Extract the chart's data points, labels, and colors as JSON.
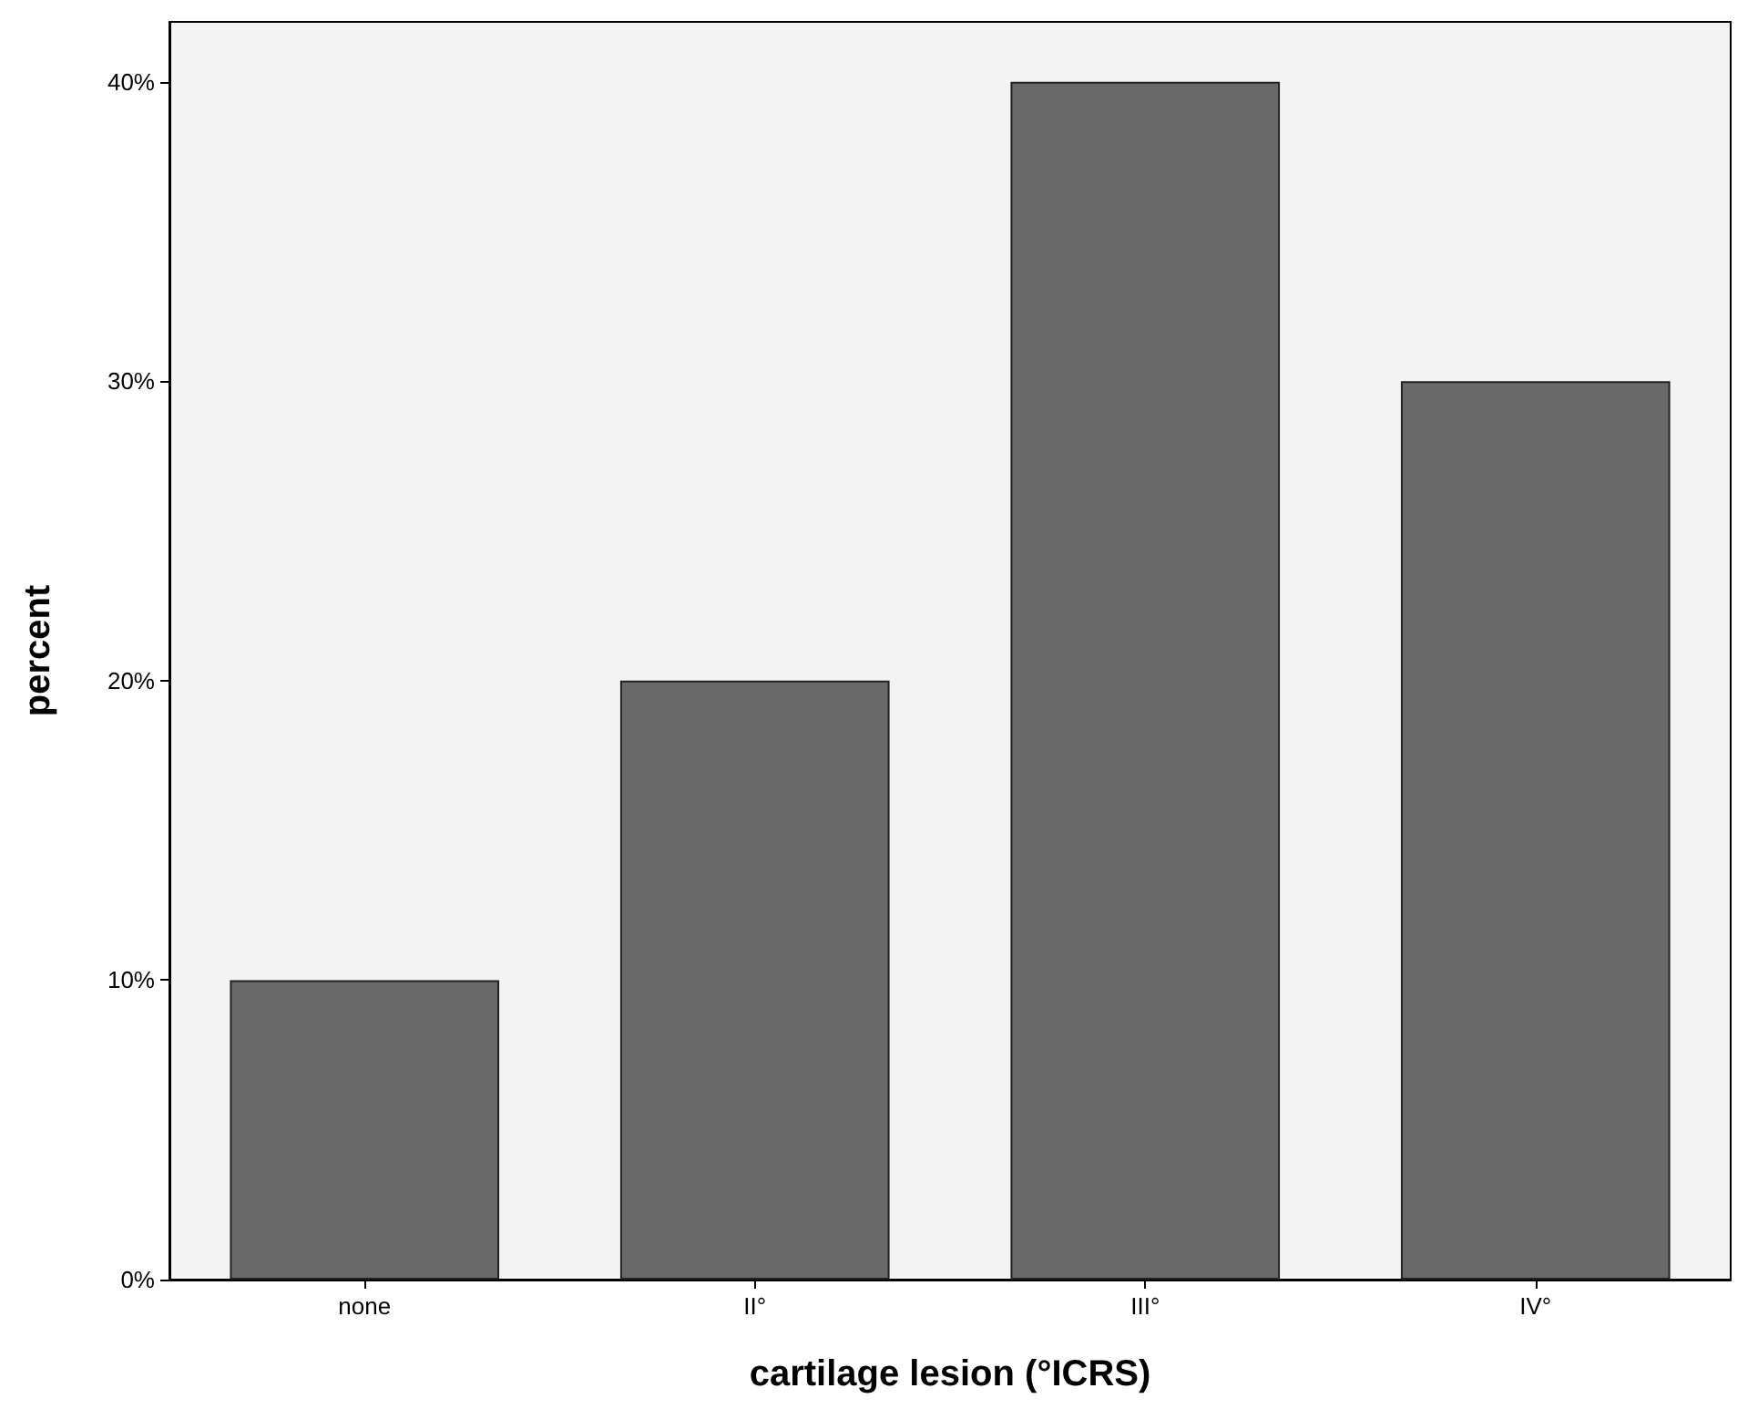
{
  "chart_data": {
    "type": "bar",
    "xlabel": "cartilage lesion (°ICRS)",
    "ylabel": "percent",
    "categories": [
      "none",
      "II°",
      "III°",
      "IV°"
    ],
    "values": [
      10,
      20,
      40,
      30
    ],
    "color": "#696969",
    "ylim": [
      0,
      42
    ],
    "yticks": [
      {
        "value": 0,
        "label": "0%"
      },
      {
        "value": 10,
        "label": "10%"
      },
      {
        "value": 20,
        "label": "20%"
      },
      {
        "value": 30,
        "label": "30%"
      },
      {
        "value": 40,
        "label": "40%"
      }
    ],
    "grid": false
  }
}
